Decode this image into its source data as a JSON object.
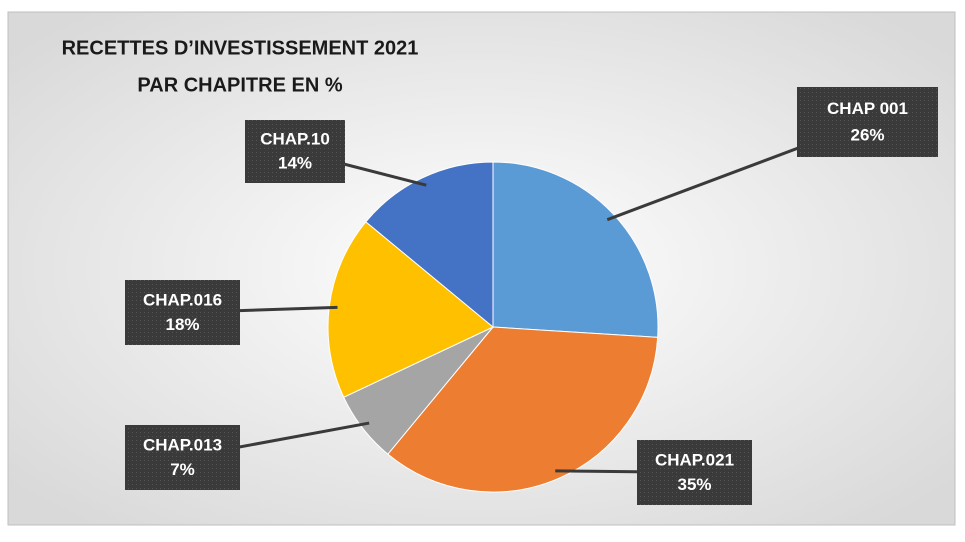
{
  "chart_data": {
    "type": "pie",
    "title": [
      "RECETTES D’INVESTISSEMENT 2021",
      "PAR CHAPITRE EN %"
    ],
    "categories": [
      "CHAP 001",
      "CHAP.021",
      "CHAP.013",
      "CHAP.016",
      "CHAP.10"
    ],
    "values": [
      26,
      35,
      7,
      18,
      14
    ],
    "value_labels": [
      "26%",
      "35%",
      "7%",
      "18%",
      "14%"
    ],
    "colors": [
      "#5b9bd5",
      "#ed7d31",
      "#a5a5a5",
      "#ffc000",
      "#4472c4"
    ]
  }
}
